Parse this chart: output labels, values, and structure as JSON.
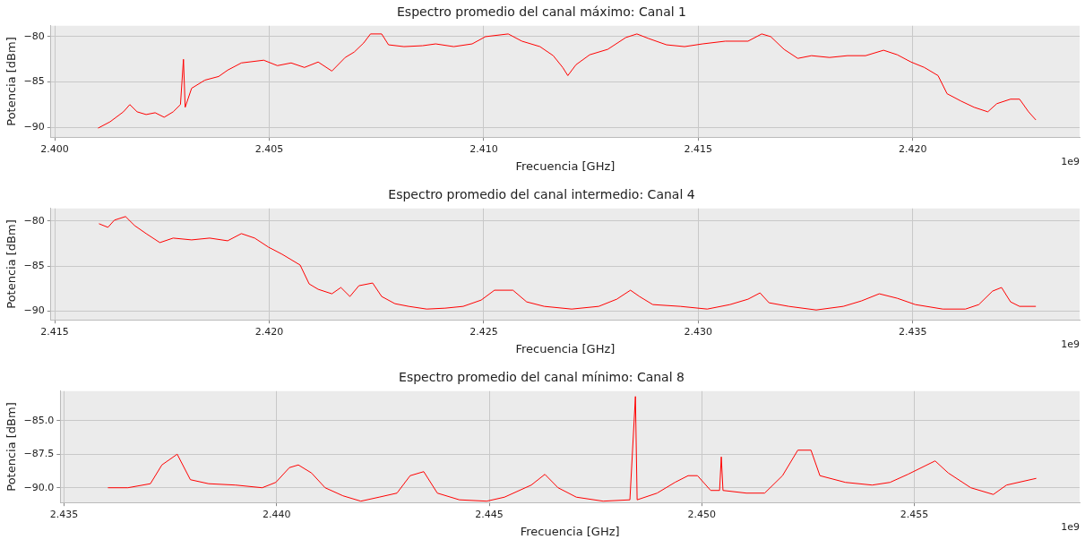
{
  "chart_data": [
    {
      "type": "line",
      "title": "Espectro promedio del canal máximo: Canal 1",
      "xlabel": "Frecuencia [GHz]",
      "ylabel": "Potencia [dBm]",
      "annotations": [
        "1e9"
      ],
      "grid": true,
      "legend": false,
      "marker": "none",
      "line_style": "solid",
      "xlim": [
        2.39991,
        2.42389
      ],
      "ylim": [
        -91.1,
        -78.8
      ],
      "xticks": [
        {
          "value": 2.4,
          "label": "2.400"
        },
        {
          "value": 2.405,
          "label": "2.405"
        },
        {
          "value": 2.41,
          "label": "2.410"
        },
        {
          "value": 2.415,
          "label": "2.415"
        },
        {
          "value": 2.42,
          "label": "2.420"
        }
      ],
      "yticks": [
        -90,
        -85,
        -80
      ],
      "series": [
        {
          "color": "#ff0000",
          "x": [
            2.40101,
            2.40129,
            2.4016,
            2.40175,
            2.40192,
            2.40213,
            2.40234,
            2.40255,
            2.40276,
            2.40293,
            2.403,
            2.40304,
            2.40319,
            2.4035,
            2.40382,
            2.40403,
            2.40435,
            2.40487,
            2.40519,
            2.40551,
            2.40582,
            2.40614,
            2.40646,
            2.40677,
            2.40698,
            2.4072,
            2.40736,
            2.40762,
            2.40778,
            2.40814,
            2.40857,
            2.40888,
            2.4093,
            2.40973,
            2.41004,
            2.41057,
            2.41089,
            2.41131,
            2.41162,
            2.41184,
            2.41196,
            2.41215,
            2.41247,
            2.41289,
            2.41331,
            2.41357,
            2.41384,
            2.41426,
            2.41468,
            2.4151,
            2.41563,
            2.41616,
            2.41648,
            2.41669,
            2.417,
            2.41732,
            2.41764,
            2.41806,
            2.41848,
            2.4189,
            2.41932,
            2.41964,
            2.41996,
            2.42027,
            2.42059,
            2.4208,
            2.42112,
            2.42143,
            2.42175,
            2.42196,
            2.42228,
            2.42249,
            2.4227,
            2.42287
          ],
          "values": [
            -90.1,
            -89.4,
            -88.3,
            -87.5,
            -88.3,
            -88.6,
            -88.4,
            -88.9,
            -88.3,
            -87.5,
            -82.5,
            -87.8,
            -85.7,
            -84.8,
            -84.4,
            -83.7,
            -82.9,
            -82.6,
            -83.2,
            -82.9,
            -83.4,
            -82.8,
            -83.8,
            -82.3,
            -81.7,
            -80.7,
            -79.7,
            -79.7,
            -80.9,
            -81.1,
            -81.0,
            -80.8,
            -81.1,
            -80.8,
            -80.0,
            -79.7,
            -80.5,
            -81.1,
            -82.1,
            -83.4,
            -84.3,
            -83.1,
            -82.0,
            -81.4,
            -80.1,
            -79.7,
            -80.2,
            -80.9,
            -81.1,
            -80.8,
            -80.5,
            -80.5,
            -79.7,
            -80.0,
            -81.4,
            -82.4,
            -82.1,
            -82.3,
            -82.1,
            -82.1,
            -81.5,
            -82.0,
            -82.8,
            -83.4,
            -84.3,
            -86.3,
            -87.1,
            -87.8,
            -88.3,
            -87.4,
            -86.9,
            -86.9,
            -88.3,
            -89.2
          ]
        }
      ]
    },
    {
      "type": "line",
      "title": "Espectro promedio del canal intermedio: Canal 4",
      "xlabel": "Frecuencia [GHz]",
      "ylabel": "Potencia [dBm]",
      "annotations": [
        "1e9"
      ],
      "grid": true,
      "legend": false,
      "marker": "none",
      "line_style": "solid",
      "xlim": [
        2.41491,
        2.43889
      ],
      "ylim": [
        -91.0,
        -78.6
      ],
      "xticks": [
        {
          "value": 2.415,
          "label": "2.415"
        },
        {
          "value": 2.42,
          "label": "2.420"
        },
        {
          "value": 2.425,
          "label": "2.425"
        },
        {
          "value": 2.43,
          "label": "2.430"
        },
        {
          "value": 2.435,
          "label": "2.435"
        }
      ],
      "yticks": [
        -90,
        -85,
        -80
      ],
      "series": [
        {
          "color": "#ff0000",
          "x": [
            2.41603,
            2.41624,
            2.41639,
            2.41665,
            2.41686,
            2.41713,
            2.41745,
            2.41776,
            2.41819,
            2.41861,
            2.41903,
            2.41935,
            2.41966,
            2.41998,
            2.4203,
            2.42072,
            2.42093,
            2.42114,
            2.42146,
            2.42167,
            2.42188,
            2.42209,
            2.42241,
            2.42262,
            2.42293,
            2.42325,
            2.42367,
            2.4241,
            2.42452,
            2.42494,
            2.42525,
            2.42568,
            2.426,
            2.42641,
            2.42705,
            2.42768,
            2.4281,
            2.42842,
            2.42863,
            2.42894,
            2.42958,
            2.43021,
            2.43074,
            2.43116,
            2.43144,
            2.43165,
            2.43211,
            2.43275,
            2.43338,
            2.4338,
            2.43422,
            2.43464,
            2.43506,
            2.4357,
            2.43623,
            2.43654,
            2.43686,
            2.43707,
            2.43728,
            2.43749,
            2.43787
          ],
          "values": [
            -80.3,
            -80.7,
            -79.9,
            -79.5,
            -80.5,
            -81.4,
            -82.4,
            -81.9,
            -82.1,
            -81.9,
            -82.2,
            -81.4,
            -81.9,
            -82.9,
            -83.7,
            -84.9,
            -87.0,
            -87.6,
            -88.1,
            -87.4,
            -88.4,
            -87.2,
            -86.9,
            -88.4,
            -89.2,
            -89.5,
            -89.8,
            -89.7,
            -89.5,
            -88.8,
            -87.7,
            -87.7,
            -89.0,
            -89.5,
            -89.8,
            -89.5,
            -88.7,
            -87.7,
            -88.4,
            -89.3,
            -89.5,
            -89.8,
            -89.3,
            -88.7,
            -88.0,
            -89.1,
            -89.5,
            -89.9,
            -89.5,
            -88.9,
            -88.1,
            -88.6,
            -89.3,
            -89.8,
            -89.8,
            -89.3,
            -87.8,
            -87.4,
            -89.0,
            -89.5,
            -89.5
          ]
        }
      ]
    },
    {
      "type": "line",
      "title": "Espectro promedio del canal mínimo: Canal 8",
      "xlabel": "Frecuencia [GHz]",
      "ylabel": "Potencia [dBm]",
      "annotations": [
        "1e9"
      ],
      "grid": true,
      "legend": false,
      "marker": "none",
      "line_style": "solid",
      "xlim": [
        2.43491,
        2.45889
      ],
      "ylim": [
        -91.1,
        -82.8
      ],
      "xticks": [
        {
          "value": 2.435,
          "label": "2.435"
        },
        {
          "value": 2.44,
          "label": "2.440"
        },
        {
          "value": 2.445,
          "label": "2.445"
        },
        {
          "value": 2.45,
          "label": "2.450"
        },
        {
          "value": 2.455,
          "label": "2.455"
        }
      ],
      "yticks": [
        {
          "value": -90,
          "label": "−90.0"
        },
        {
          "value": -87.5,
          "label": "−87.5"
        },
        {
          "value": -85,
          "label": "−85.0"
        }
      ],
      "series": [
        {
          "color": "#ff0000",
          "x": [
            2.43603,
            2.4365,
            2.43703,
            2.4373,
            2.43766,
            2.43797,
            2.4384,
            2.43903,
            2.43966,
            2.43998,
            2.4403,
            2.44051,
            2.44082,
            2.44114,
            2.44156,
            2.44198,
            2.44241,
            2.44283,
            2.44314,
            2.44346,
            2.44378,
            2.4443,
            2.44494,
            2.44536,
            2.44599,
            2.44631,
            2.44662,
            2.44705,
            2.44768,
            2.44831,
            2.44844,
            2.44848,
            2.44895,
            2.44937,
            2.44968,
            2.4499,
            2.45021,
            2.45042,
            2.45046,
            2.4505,
            2.45105,
            2.45148,
            2.4519,
            2.45226,
            2.45257,
            2.45278,
            2.45338,
            2.45401,
            2.45443,
            2.45485,
            2.45549,
            2.4558,
            2.45633,
            2.45686,
            2.45717,
            2.45787
          ],
          "values": [
            -90.0,
            -90.0,
            -89.7,
            -88.3,
            -87.5,
            -89.4,
            -89.7,
            -89.8,
            -90.0,
            -89.6,
            -88.5,
            -88.3,
            -88.9,
            -90.0,
            -90.6,
            -91.0,
            -90.7,
            -90.4,
            -89.1,
            -88.8,
            -90.4,
            -90.9,
            -91.0,
            -90.7,
            -89.8,
            -89.0,
            -90.0,
            -90.7,
            -91.0,
            -90.9,
            -83.2,
            -90.9,
            -90.4,
            -89.6,
            -89.1,
            -89.1,
            -90.2,
            -90.2,
            -87.7,
            -90.2,
            -90.4,
            -90.4,
            -89.1,
            -87.2,
            -87.2,
            -89.1,
            -89.6,
            -89.8,
            -89.6,
            -89.0,
            -88.0,
            -88.9,
            -90.0,
            -90.5,
            -89.8,
            -89.3
          ]
        }
      ]
    }
  ]
}
